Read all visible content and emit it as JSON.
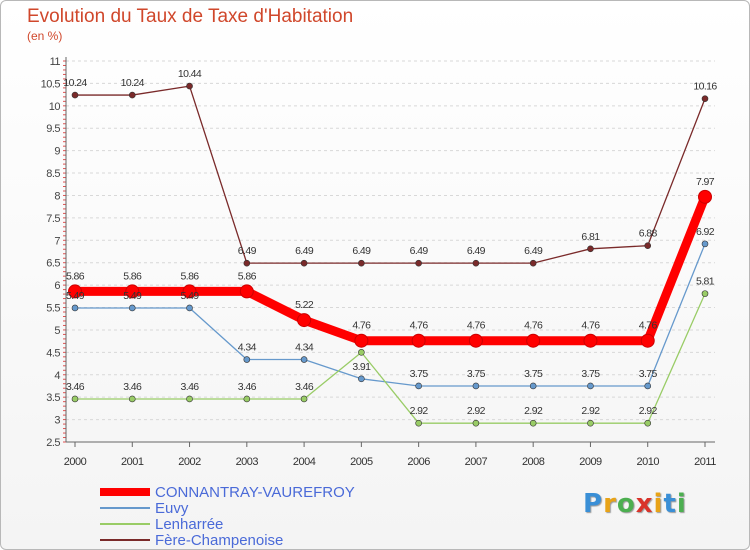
{
  "header": {
    "title": "Evolution du Taux de Taxe d'Habitation",
    "subtitle": "(en %)"
  },
  "chart_data": {
    "type": "line",
    "title": "Evolution du Taux de Taxe d'Habitation",
    "ylabel": "(en %)",
    "x": [
      "2000",
      "2001",
      "2002",
      "2003",
      "2004",
      "2005",
      "2006",
      "2007",
      "2008",
      "2009",
      "2010",
      "2011"
    ],
    "ylim": [
      2.5,
      11
    ],
    "yticks": [
      "2.5",
      "3",
      "3.5",
      "4",
      "4.5",
      "5",
      "5.5",
      "6",
      "6.5",
      "7",
      "7.5",
      "8",
      "8.5",
      "9",
      "9.5",
      "10",
      "10.5",
      "11"
    ],
    "grid": "horizontal dashed",
    "legend": "bottom",
    "series": [
      {
        "name": "CONNANTRAY-VAUREFROY",
        "color": "#ff0000",
        "values": [
          5.86,
          5.86,
          5.86,
          5.86,
          5.22,
          4.76,
          4.76,
          4.76,
          4.76,
          4.76,
          4.76,
          7.97
        ],
        "labels": [
          "5.86",
          "5.86",
          "5.86",
          "5.86",
          "5.22",
          "4.76",
          "4.76",
          "4.76",
          "4.76",
          "4.76",
          "4.76",
          "7.97"
        ]
      },
      {
        "name": "Euvy",
        "color": "#6699cc",
        "values": [
          5.49,
          5.49,
          5.49,
          4.34,
          4.34,
          3.91,
          3.75,
          3.75,
          3.75,
          3.75,
          3.75,
          6.92
        ],
        "labels": [
          "5.49",
          "5.49",
          "5.49",
          "4.34",
          "4.34",
          "3.91",
          "3.75",
          "3.75",
          "3.75",
          "3.75",
          "3.75",
          "6.92"
        ]
      },
      {
        "name": "Lenharrée",
        "color": "#99cc66",
        "values": [
          3.46,
          3.46,
          3.46,
          3.46,
          3.46,
          4.5,
          2.92,
          2.92,
          2.92,
          2.92,
          2.92,
          5.81
        ],
        "labels": [
          "3.46",
          "3.46",
          "3.46",
          "3.46",
          "3.46",
          "",
          "2.92",
          "2.92",
          "2.92",
          "2.92",
          "2.92",
          "5.81"
        ]
      },
      {
        "name": "Fère-Champenoise",
        "color": "#7a2a2a",
        "values": [
          10.24,
          10.24,
          10.44,
          6.49,
          6.49,
          6.49,
          6.49,
          6.49,
          6.49,
          6.81,
          6.88,
          10.16
        ],
        "labels": [
          "10.24",
          "10.24",
          "10.44",
          "6.49",
          "6.49",
          "6.49",
          "6.49",
          "6.49",
          "6.49",
          "6.81",
          "6.88",
          "10.16"
        ]
      }
    ]
  },
  "logo": {
    "letters": [
      "P",
      "r",
      "o",
      "x",
      "i",
      "t",
      "i"
    ],
    "colors": [
      "#3a8fd6",
      "#e8a317",
      "#4caf50",
      "#d9342b",
      "#e8a317",
      "#3a8fd6",
      "#4caf50"
    ]
  }
}
